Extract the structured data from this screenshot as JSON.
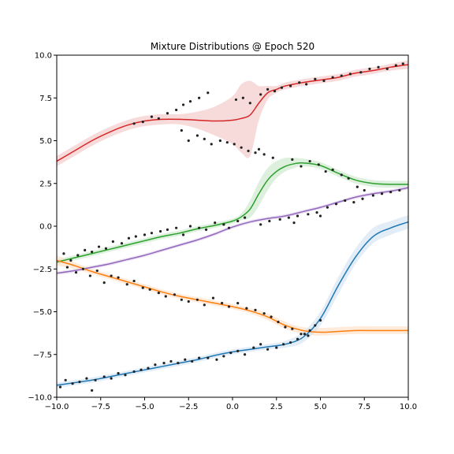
{
  "chart_data": {
    "type": "line",
    "title": "Mixture Distributions @ Epoch 520",
    "xlabel": "",
    "ylabel": "",
    "xlim": [
      -10,
      10
    ],
    "ylim": [
      -10,
      10
    ],
    "x_ticks": [
      -10,
      -7.5,
      -5,
      -2.5,
      0,
      2.5,
      5,
      7.5,
      10
    ],
    "y_ticks": [
      -10,
      -7.5,
      -5,
      -2.5,
      0,
      2.5,
      5,
      7.5,
      10
    ],
    "x_tick_labels": [
      "−10.0",
      "−7.5",
      "−5.0",
      "−2.5",
      "0.0",
      "2.5",
      "5.0",
      "7.5",
      "10.0"
    ],
    "y_tick_labels": [
      "−10.0",
      "−7.5",
      "−5.0",
      "−2.5",
      "0.0",
      "2.5",
      "5.0",
      "7.5",
      "10.0"
    ],
    "grid": false,
    "series": [
      {
        "color": "#d62728",
        "band": "#f2c7c7",
        "x": [
          -10,
          -9,
          -8,
          -7,
          -6,
          -5,
          -4,
          -3,
          -2,
          -1,
          0,
          0.5,
          1,
          1.5,
          2,
          2.5,
          3,
          4,
          5,
          6,
          7,
          8,
          9,
          10
        ],
        "y": [
          3.8,
          4.4,
          5.0,
          5.5,
          5.9,
          6.15,
          6.25,
          6.25,
          6.2,
          6.15,
          6.2,
          6.3,
          6.5,
          7.2,
          7.8,
          8.0,
          8.2,
          8.4,
          8.55,
          8.7,
          8.95,
          9.1,
          9.3,
          9.45
        ],
        "lo": [
          3.5,
          4.1,
          4.7,
          5.2,
          5.6,
          5.85,
          5.95,
          5.95,
          5.7,
          5.3,
          4.8,
          4.3,
          4.1,
          6.2,
          7.4,
          7.8,
          8.0,
          8.2,
          8.35,
          8.5,
          8.75,
          8.9,
          9.1,
          9.2
        ],
        "hi": [
          4.1,
          4.7,
          5.3,
          5.8,
          6.2,
          6.45,
          6.55,
          6.55,
          6.7,
          7.0,
          7.6,
          8.3,
          8.5,
          8.2,
          8.2,
          8.2,
          8.4,
          8.6,
          8.75,
          8.9,
          9.15,
          9.3,
          9.5,
          9.7
        ]
      },
      {
        "color": "#2ca02c",
        "band": "#cbe8cb",
        "x": [
          -10,
          -9,
          -8,
          -7,
          -6,
          -5,
          -4,
          -3,
          -2,
          -1,
          0,
          0.5,
          1,
          1.5,
          2,
          2.5,
          3,
          3.5,
          4,
          5,
          6,
          7,
          8,
          9,
          10
        ],
        "y": [
          -2.1,
          -1.85,
          -1.6,
          -1.35,
          -1.1,
          -0.85,
          -0.6,
          -0.4,
          -0.15,
          0.05,
          0.3,
          0.55,
          1.0,
          1.9,
          2.7,
          3.2,
          3.5,
          3.65,
          3.7,
          3.55,
          3.1,
          2.7,
          2.5,
          2.45,
          2.45
        ],
        "lo": [
          -2.25,
          -2.0,
          -1.75,
          -1.5,
          -1.25,
          -1.0,
          -0.75,
          -0.55,
          -0.3,
          -0.1,
          0.15,
          0.35,
          0.5,
          1.2,
          2.1,
          2.8,
          3.2,
          3.4,
          3.5,
          3.35,
          2.9,
          2.5,
          2.3,
          2.25,
          2.25
        ],
        "hi": [
          -1.95,
          -1.7,
          -1.45,
          -1.2,
          -0.95,
          -0.7,
          -0.45,
          -0.25,
          0.0,
          0.2,
          0.45,
          0.75,
          1.5,
          2.6,
          3.4,
          3.8,
          4.0,
          4.0,
          3.95,
          3.75,
          3.3,
          2.9,
          2.7,
          2.65,
          2.65
        ]
      },
      {
        "color": "#9467bd",
        "band": "#e1d6ec",
        "x": [
          -10,
          -9,
          -8,
          -7,
          -6,
          -5,
          -4,
          -3,
          -2,
          -1,
          0,
          1,
          2,
          3,
          4,
          5,
          6,
          7,
          8,
          9,
          10
        ],
        "y": [
          -2.75,
          -2.6,
          -2.4,
          -2.2,
          -1.95,
          -1.7,
          -1.4,
          -1.1,
          -0.8,
          -0.45,
          -0.05,
          0.25,
          0.45,
          0.6,
          0.85,
          1.1,
          1.4,
          1.7,
          1.9,
          2.05,
          2.25
        ],
        "lo": [
          -2.85,
          -2.7,
          -2.5,
          -2.3,
          -2.05,
          -1.8,
          -1.5,
          -1.2,
          -0.9,
          -0.55,
          -0.15,
          0.15,
          0.35,
          0.5,
          0.75,
          1.0,
          1.3,
          1.6,
          1.8,
          1.95,
          2.15
        ],
        "hi": [
          -2.65,
          -2.5,
          -2.3,
          -2.1,
          -1.85,
          -1.6,
          -1.3,
          -1.0,
          -0.7,
          -0.35,
          0.05,
          0.35,
          0.55,
          0.7,
          0.95,
          1.2,
          1.5,
          1.8,
          2.0,
          2.15,
          2.35
        ]
      },
      {
        "color": "#ff7f0e",
        "band": "#fde0c8",
        "x": [
          -10,
          -9,
          -8,
          -7,
          -6,
          -5,
          -4,
          -3,
          -2,
          -1,
          0,
          1,
          2,
          3,
          4,
          5,
          6,
          7,
          8,
          9,
          10
        ],
        "y": [
          -2.0,
          -2.3,
          -2.65,
          -2.95,
          -3.25,
          -3.55,
          -3.85,
          -4.1,
          -4.3,
          -4.5,
          -4.7,
          -4.95,
          -5.3,
          -5.8,
          -6.1,
          -6.2,
          -6.15,
          -6.1,
          -6.1,
          -6.1,
          -6.1
        ],
        "lo": [
          -2.3,
          -2.5,
          -2.8,
          -3.1,
          -3.4,
          -3.7,
          -4.0,
          -4.25,
          -4.45,
          -4.65,
          -4.85,
          -5.1,
          -5.5,
          -6.0,
          -6.3,
          -6.4,
          -6.35,
          -6.3,
          -6.3,
          -6.3,
          -6.3
        ],
        "hi": [
          -1.7,
          -2.1,
          -2.5,
          -2.8,
          -3.1,
          -3.4,
          -3.7,
          -3.95,
          -4.15,
          -4.35,
          -4.55,
          -4.8,
          -5.1,
          -5.6,
          -5.9,
          -5.95,
          -5.9,
          -5.85,
          -5.85,
          -5.85,
          -5.85
        ]
      },
      {
        "color": "#1f77b4",
        "band": "#d2e3f3",
        "x": [
          -10,
          -9,
          -8,
          -7,
          -6,
          -5,
          -4,
          -3,
          -2,
          -1,
          0,
          1,
          2,
          3,
          4,
          5,
          6,
          7,
          8,
          9,
          10
        ],
        "y": [
          -9.3,
          -9.15,
          -9.0,
          -8.8,
          -8.6,
          -8.4,
          -8.2,
          -8.0,
          -7.8,
          -7.55,
          -7.35,
          -7.2,
          -7.05,
          -6.9,
          -6.5,
          -5.4,
          -3.5,
          -1.8,
          -0.6,
          -0.1,
          0.25
        ],
        "lo": [
          -9.45,
          -9.3,
          -9.15,
          -8.95,
          -8.75,
          -8.55,
          -8.35,
          -8.15,
          -7.95,
          -7.7,
          -7.5,
          -7.35,
          -7.2,
          -7.1,
          -6.8,
          -5.8,
          -4.0,
          -2.2,
          -1.0,
          -0.5,
          -0.15
        ],
        "hi": [
          -9.15,
          -9.0,
          -8.85,
          -8.65,
          -8.45,
          -8.25,
          -8.05,
          -7.85,
          -7.65,
          -7.4,
          -7.2,
          -7.05,
          -6.9,
          -6.7,
          -6.2,
          -5.0,
          -3.0,
          -1.3,
          -0.1,
          0.3,
          0.65
        ]
      }
    ],
    "scatter": {
      "color": "#222222",
      "points": [
        [
          -9.8,
          -9.4
        ],
        [
          -9.5,
          -9.0
        ],
        [
          -9.1,
          -9.2
        ],
        [
          -8.7,
          -9.1
        ],
        [
          -8.3,
          -8.9
        ],
        [
          -8.0,
          -9.6
        ],
        [
          -7.8,
          -9.0
        ],
        [
          -7.3,
          -8.8
        ],
        [
          -6.9,
          -8.9
        ],
        [
          -6.5,
          -8.6
        ],
        [
          -6.1,
          -8.7
        ],
        [
          -5.6,
          -8.5
        ],
        [
          -5.2,
          -8.4
        ],
        [
          -4.8,
          -8.3
        ],
        [
          -4.4,
          -8.1
        ],
        [
          -3.9,
          -8.0
        ],
        [
          -3.5,
          -7.9
        ],
        [
          -3.1,
          -8.0
        ],
        [
          -2.7,
          -7.8
        ],
        [
          -2.3,
          -7.9
        ],
        [
          -1.9,
          -7.7
        ],
        [
          -1.4,
          -7.7
        ],
        [
          -0.9,
          -7.8
        ],
        [
          -0.5,
          -7.6
        ],
        [
          -0.1,
          -7.4
        ],
        [
          0.3,
          -7.3
        ],
        [
          0.7,
          -7.5
        ],
        [
          1.2,
          -7.1
        ],
        [
          1.6,
          -6.9
        ],
        [
          2.0,
          -7.2
        ],
        [
          2.5,
          -7.1
        ],
        [
          2.9,
          -6.9
        ],
        [
          3.3,
          -6.8
        ],
        [
          3.7,
          -6.6
        ],
        [
          4.1,
          -6.3
        ],
        [
          4.4,
          -6.1
        ],
        [
          4.7,
          -5.8
        ],
        [
          5.0,
          -5.5
        ],
        [
          -9.6,
          -1.6
        ],
        [
          -9.2,
          -2.0
        ],
        [
          -8.8,
          -1.7
        ],
        [
          -8.4,
          -1.4
        ],
        [
          -8.0,
          -1.5
        ],
        [
          -7.6,
          -1.2
        ],
        [
          -7.2,
          -1.3
        ],
        [
          -6.8,
          -0.9
        ],
        [
          -6.3,
          -1.0
        ],
        [
          -5.9,
          -0.7
        ],
        [
          -5.5,
          -0.6
        ],
        [
          -5.0,
          -0.5
        ],
        [
          -4.6,
          -0.4
        ],
        [
          -4.1,
          -0.3
        ],
        [
          -3.7,
          -0.2
        ],
        [
          -3.2,
          -0.1
        ],
        [
          -2.8,
          -0.5
        ],
        [
          -2.4,
          0.0
        ],
        [
          -1.9,
          -0.1
        ],
        [
          -1.5,
          -0.2
        ],
        [
          -1.0,
          0.2
        ],
        [
          -0.5,
          0.1
        ],
        [
          -0.2,
          -0.1
        ],
        [
          0.3,
          0.3
        ],
        [
          0.7,
          0.5
        ],
        [
          3.4,
          3.9
        ],
        [
          3.9,
          3.5
        ],
        [
          4.4,
          3.8
        ],
        [
          4.9,
          3.6
        ],
        [
          5.3,
          3.2
        ],
        [
          5.7,
          3.3
        ],
        [
          6.2,
          3.0
        ],
        [
          6.6,
          2.8
        ],
        [
          7.1,
          2.3
        ],
        [
          7.5,
          2.1
        ],
        [
          8.0,
          1.8
        ],
        [
          8.5,
          1.9
        ],
        [
          9.0,
          2.0
        ],
        [
          9.5,
          2.1
        ],
        [
          -9.4,
          -2.4
        ],
        [
          -8.9,
          -2.7
        ],
        [
          -8.5,
          -2.5
        ],
        [
          -8.1,
          -2.9
        ],
        [
          -7.7,
          -2.6
        ],
        [
          -7.3,
          -3.3
        ],
        [
          -6.9,
          -2.9
        ],
        [
          -6.5,
          -3.0
        ],
        [
          -6.0,
          -3.4
        ],
        [
          -5.6,
          -3.2
        ],
        [
          -5.1,
          -3.6
        ],
        [
          -4.7,
          -3.7
        ],
        [
          -4.2,
          -3.9
        ],
        [
          -3.8,
          -4.1
        ],
        [
          -3.3,
          -4.0
        ],
        [
          -2.9,
          -4.3
        ],
        [
          -2.5,
          -4.4
        ],
        [
          -2.0,
          -4.3
        ],
        [
          -1.6,
          -4.6
        ],
        [
          -1.1,
          -4.2
        ],
        [
          -0.6,
          -4.5
        ],
        [
          -0.2,
          -4.7
        ],
        [
          0.3,
          -4.5
        ],
        [
          0.8,
          -4.8
        ],
        [
          1.3,
          -4.9
        ],
        [
          1.8,
          -5.1
        ],
        [
          2.2,
          -5.3
        ],
        [
          2.6,
          -5.6
        ],
        [
          3.0,
          -5.9
        ],
        [
          3.4,
          -6.0
        ],
        [
          3.9,
          -6.3
        ],
        [
          4.3,
          -6.4
        ],
        [
          -5.6,
          6.0
        ],
        [
          -5.1,
          6.1
        ],
        [
          -4.6,
          6.4
        ],
        [
          -4.2,
          6.3
        ],
        [
          -3.7,
          6.6
        ],
        [
          -3.2,
          6.8
        ],
        [
          -2.8,
          7.1
        ],
        [
          -2.4,
          7.3
        ],
        [
          -1.9,
          7.5
        ],
        [
          -1.4,
          7.8
        ],
        [
          -2.9,
          5.6
        ],
        [
          -2.5,
          5.0
        ],
        [
          -2.0,
          5.3
        ],
        [
          -1.6,
          5.1
        ],
        [
          -1.2,
          4.8
        ],
        [
          -0.7,
          5.0
        ],
        [
          -0.3,
          4.9
        ],
        [
          0.1,
          4.8
        ],
        [
          0.5,
          4.6
        ],
        [
          0.9,
          4.4
        ],
        [
          1.3,
          4.3
        ],
        [
          0.2,
          7.4
        ],
        [
          0.6,
          7.5
        ],
        [
          1.0,
          7.2
        ],
        [
          1.6,
          7.7
        ],
        [
          2.0,
          8.0
        ],
        [
          2.4,
          7.9
        ],
        [
          2.8,
          8.1
        ],
        [
          3.3,
          8.2
        ],
        [
          3.8,
          8.4
        ],
        [
          4.2,
          8.3
        ],
        [
          4.7,
          8.6
        ],
        [
          5.2,
          8.5
        ],
        [
          5.7,
          8.7
        ],
        [
          6.2,
          8.8
        ],
        [
          6.7,
          8.9
        ],
        [
          7.3,
          9.0
        ],
        [
          7.8,
          9.2
        ],
        [
          8.3,
          9.3
        ],
        [
          8.8,
          9.2
        ],
        [
          9.3,
          9.4
        ],
        [
          9.7,
          9.5
        ],
        [
          1.5,
          4.5
        ],
        [
          1.8,
          4.2
        ],
        [
          2.3,
          4.0
        ],
        [
          1.6,
          0.1
        ],
        [
          2.1,
          0.3
        ],
        [
          2.7,
          0.4
        ],
        [
          3.2,
          0.5
        ],
        [
          3.7,
          0.6
        ],
        [
          4.3,
          0.7
        ],
        [
          4.8,
          0.8
        ],
        [
          5.4,
          1.1
        ],
        [
          5.9,
          1.3
        ],
        [
          6.4,
          1.5
        ],
        [
          6.9,
          1.4
        ],
        [
          7.4,
          1.6
        ],
        [
          5.0,
          0.6
        ],
        [
          3.5,
          0.2
        ]
      ]
    }
  }
}
